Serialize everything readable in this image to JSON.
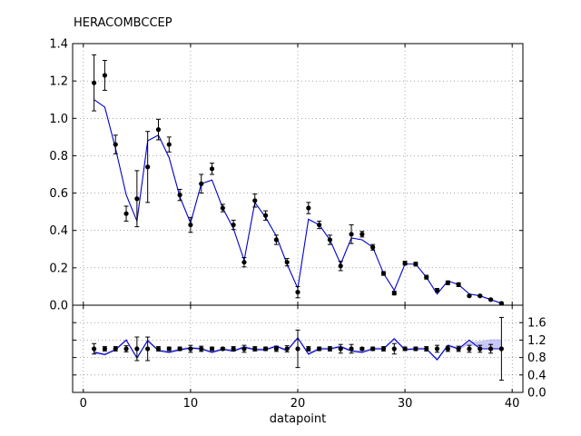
{
  "chart_data": {
    "type": "scatter",
    "title": "HERACOMBCCEP",
    "xlabel": "datapoint",
    "xlim": [
      -1,
      41
    ],
    "x_ticks": [
      "0",
      "10",
      "20",
      "30",
      "40"
    ],
    "grid": true,
    "colors": {
      "data": "#000000",
      "theory": "#0000cc",
      "band": "#8888ee"
    },
    "top_panel": {
      "ylim": [
        0,
        1.4
      ],
      "y_ticks": [
        "0.0",
        "0.2",
        "0.4",
        "0.6",
        "0.8",
        "1.0",
        "1.2",
        "1.4"
      ],
      "data": {
        "x": [
          1,
          2,
          3,
          4,
          5,
          6,
          7,
          8,
          9,
          10,
          11,
          12,
          13,
          14,
          15,
          16,
          17,
          18,
          19,
          20,
          21,
          22,
          23,
          24,
          25,
          26,
          27,
          28,
          29,
          30,
          31,
          32,
          33,
          34,
          35,
          36,
          37,
          38,
          39
        ],
        "y": [
          1.19,
          1.23,
          0.86,
          0.49,
          0.57,
          0.74,
          0.94,
          0.86,
          0.59,
          0.43,
          0.65,
          0.73,
          0.52,
          0.43,
          0.23,
          0.56,
          0.48,
          0.35,
          0.23,
          0.07,
          0.52,
          0.43,
          0.35,
          0.21,
          0.38,
          0.38,
          0.31,
          0.17,
          0.065,
          0.225,
          0.22,
          0.15,
          0.08,
          0.12,
          0.11,
          0.05,
          0.05,
          0.03,
          0.01
        ],
        "yerr": [
          0.15,
          0.08,
          0.05,
          0.04,
          0.15,
          0.19,
          0.055,
          0.04,
          0.03,
          0.04,
          0.05,
          0.03,
          0.02,
          0.025,
          0.025,
          0.035,
          0.025,
          0.025,
          0.02,
          0.03,
          0.03,
          0.02,
          0.025,
          0.025,
          0.05,
          0.015,
          0.015,
          0.01,
          0.01,
          0.01,
          0.01,
          0.01,
          0.01,
          0.01,
          0.01,
          0.005,
          0.005,
          0.005,
          0.005
        ]
      },
      "theory": {
        "x": [
          1,
          2,
          3,
          4,
          5,
          6,
          7,
          8,
          9,
          10,
          11,
          12,
          13,
          14,
          15,
          16,
          17,
          18,
          19,
          20,
          21,
          22,
          23,
          24,
          25,
          26,
          27,
          28,
          29,
          30,
          31,
          32,
          33,
          34,
          35,
          36,
          37,
          38,
          39
        ],
        "y": [
          1.1,
          1.06,
          0.84,
          0.59,
          0.45,
          0.88,
          0.91,
          0.79,
          0.58,
          0.44,
          0.65,
          0.67,
          0.52,
          0.41,
          0.24,
          0.55,
          0.47,
          0.37,
          0.22,
          0.09,
          0.46,
          0.43,
          0.35,
          0.22,
          0.36,
          0.35,
          0.31,
          0.17,
          0.08,
          0.22,
          0.22,
          0.15,
          0.06,
          0.13,
          0.11,
          0.06,
          0.05,
          0.03,
          0.01
        ]
      }
    },
    "ratio_panel": {
      "ylim": [
        0,
        2.0
      ],
      "y_ticks": [
        "0.0",
        "0.4",
        "0.8",
        "1.2",
        "1.6"
      ],
      "data": {
        "x": [
          1,
          2,
          3,
          4,
          5,
          6,
          7,
          8,
          9,
          10,
          11,
          12,
          13,
          14,
          15,
          16,
          17,
          18,
          19,
          20,
          21,
          22,
          23,
          24,
          25,
          26,
          27,
          28,
          29,
          30,
          31,
          32,
          33,
          34,
          35,
          36,
          37,
          38,
          39
        ],
        "y": [
          1,
          1,
          1,
          1,
          1,
          1,
          1,
          1,
          1,
          1,
          1,
          1,
          1,
          1,
          1,
          1,
          1,
          1,
          1,
          1,
          1,
          1,
          1,
          1,
          1,
          1,
          1,
          1,
          1,
          1,
          1,
          1,
          1,
          1,
          1,
          1,
          1,
          1,
          1
        ],
        "yerr": [
          0.12,
          0.05,
          0.05,
          0.07,
          0.27,
          0.27,
          0.05,
          0.04,
          0.04,
          0.08,
          0.06,
          0.04,
          0.03,
          0.05,
          0.08,
          0.05,
          0.04,
          0.06,
          0.07,
          0.43,
          0.05,
          0.04,
          0.05,
          0.1,
          0.1,
          0.03,
          0.04,
          0.05,
          0.12,
          0.04,
          0.04,
          0.05,
          0.08,
          0.06,
          0.06,
          0.08,
          0.08,
          0.1,
          0.72
        ]
      },
      "theory": {
        "x": [
          1,
          2,
          3,
          4,
          5,
          6,
          7,
          8,
          9,
          10,
          11,
          12,
          13,
          14,
          15,
          16,
          17,
          18,
          19,
          20,
          21,
          22,
          23,
          24,
          25,
          26,
          27,
          28,
          29,
          30,
          31,
          32,
          33,
          34,
          35,
          36,
          37,
          38,
          39
        ],
        "y": [
          0.92,
          0.87,
          0.98,
          1.2,
          0.79,
          1.19,
          0.96,
          0.92,
          0.98,
          1.02,
          1.0,
          0.92,
          0.99,
          0.95,
          1.04,
          0.98,
          0.98,
          1.06,
          0.96,
          1.25,
          0.88,
          1.0,
          1.0,
          1.05,
          0.95,
          0.92,
          1.0,
          1.0,
          1.23,
          0.98,
          1.0,
          1.0,
          0.75,
          1.08,
          1.0,
          1.2,
          1.0,
          1.0,
          1.0
        ],
        "band_lower": [
          0.89,
          0.84,
          0.95,
          1.17,
          0.76,
          1.16,
          0.93,
          0.89,
          0.95,
          0.99,
          0.97,
          0.89,
          0.96,
          0.92,
          1.01,
          0.95,
          0.95,
          1.03,
          0.93,
          1.22,
          0.85,
          0.97,
          0.97,
          1.02,
          0.92,
          0.89,
          0.97,
          0.97,
          1.2,
          0.95,
          0.97,
          0.97,
          0.72,
          1.05,
          0.97,
          1.1,
          1.02,
          1.0,
          1.02
        ],
        "band_upper": [
          0.95,
          0.9,
          1.01,
          1.23,
          0.82,
          1.22,
          0.99,
          0.95,
          1.01,
          1.05,
          1.03,
          0.95,
          1.02,
          0.98,
          1.07,
          1.01,
          1.01,
          1.09,
          0.99,
          1.28,
          0.91,
          1.03,
          1.03,
          1.08,
          0.98,
          0.95,
          1.03,
          1.03,
          1.26,
          1.01,
          1.03,
          1.03,
          0.78,
          1.11,
          1.03,
          1.16,
          1.18,
          1.22,
          1.22
        ]
      }
    }
  }
}
